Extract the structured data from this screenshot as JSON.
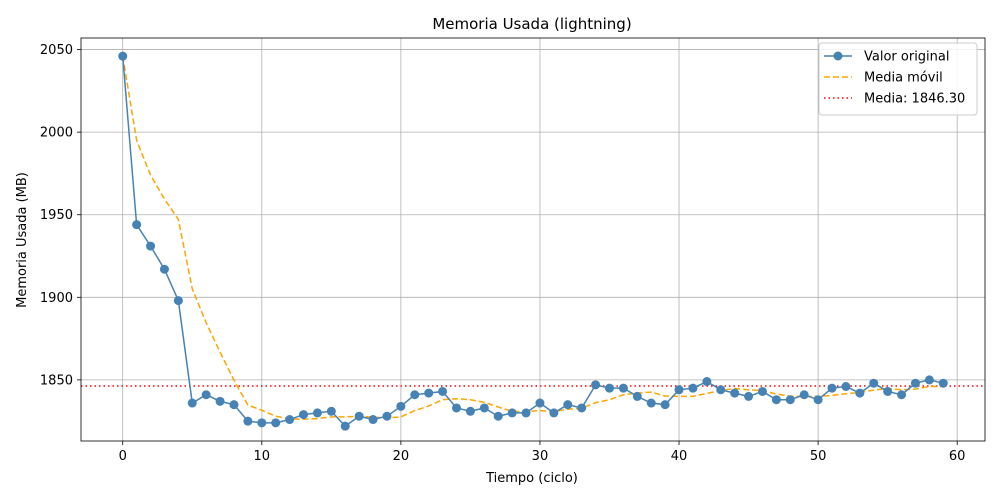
{
  "chart_data": {
    "type": "line",
    "title": "Memoria Usada (lightning)",
    "xlabel": "Tiempo (ciclo)",
    "ylabel": "Memoria Usada (MB)",
    "xlim": [
      -3,
      62
    ],
    "ylim": [
      1813,
      2057
    ],
    "xticks": [
      0,
      10,
      20,
      30,
      40,
      50,
      60
    ],
    "yticks": [
      1850,
      1900,
      1950,
      2000,
      2050
    ],
    "grid": true,
    "legend_position": "top-right",
    "series": [
      {
        "name": "Valor original",
        "style": "solid-with-markers",
        "color": "#4682b4",
        "x": [
          0,
          1,
          2,
          3,
          4,
          5,
          6,
          7,
          8,
          9,
          10,
          11,
          12,
          13,
          14,
          15,
          16,
          17,
          18,
          19,
          20,
          21,
          22,
          23,
          24,
          25,
          26,
          27,
          28,
          29,
          30,
          31,
          32,
          33,
          34,
          35,
          36,
          37,
          38,
          39,
          40,
          41,
          42,
          43,
          44,
          45,
          46,
          47,
          48,
          49,
          50,
          51,
          52,
          53,
          54,
          55,
          56,
          57,
          58,
          59
        ],
        "values": [
          2046,
          1944,
          1931,
          1917,
          1898,
          1836,
          1841,
          1837,
          1835,
          1825,
          1824,
          1824,
          1826,
          1829,
          1830,
          1831,
          1822,
          1828,
          1826,
          1828,
          1834,
          1841,
          1842,
          1843,
          1833,
          1831,
          1833,
          1828,
          1830,
          1830,
          1836,
          1830,
          1835,
          1833,
          1847,
          1845,
          1845,
          1840,
          1836,
          1835,
          1844,
          1845,
          1849,
          1844,
          1842,
          1840,
          1843,
          1838,
          1838,
          1841,
          1838,
          1845,
          1846,
          1842,
          1848,
          1843,
          1841,
          1848,
          1850,
          1848
        ]
      },
      {
        "name": "Media móvil",
        "style": "dashed",
        "color": "#ffa500",
        "x": [
          0,
          1,
          2,
          3,
          4,
          5,
          6,
          7,
          8,
          9,
          10,
          11,
          12,
          13,
          14,
          15,
          16,
          17,
          18,
          19,
          20,
          21,
          22,
          23,
          24,
          25,
          26,
          27,
          28,
          29,
          30,
          31,
          32,
          33,
          34,
          35,
          36,
          37,
          38,
          39,
          40,
          41,
          42,
          43,
          44,
          45,
          46,
          47,
          48,
          49,
          50,
          51,
          52,
          53,
          54,
          55,
          56,
          57,
          58,
          59
        ],
        "values": [
          2046,
          1995,
          1974,
          1959.5,
          1947.2,
          1905.2,
          1884.6,
          1866.8,
          1849.8,
          1834.8,
          1831.6,
          1828,
          1826.4,
          1826.2,
          1826.6,
          1827.6,
          1827.6,
          1828,
          1827.4,
          1827,
          1827.6,
          1831.4,
          1834.2,
          1838,
          1838.6,
          1838,
          1836.4,
          1833.6,
          1831,
          1830.8,
          1831.4,
          1830.8,
          1832.2,
          1832.8,
          1836.2,
          1838,
          1841,
          1842,
          1842.6,
          1840.2,
          1840,
          1840,
          1841.8,
          1843.6,
          1844.8,
          1844,
          1843.6,
          1841.4,
          1840.2,
          1840,
          1840,
          1840.6,
          1841.6,
          1842.4,
          1843.8,
          1844.8,
          1844,
          1844.4,
          1846,
          1846
        ]
      },
      {
        "name": "Media: 1846.30",
        "style": "dotted-hline",
        "color": "#ff0000",
        "value": 1846.3
      }
    ]
  }
}
